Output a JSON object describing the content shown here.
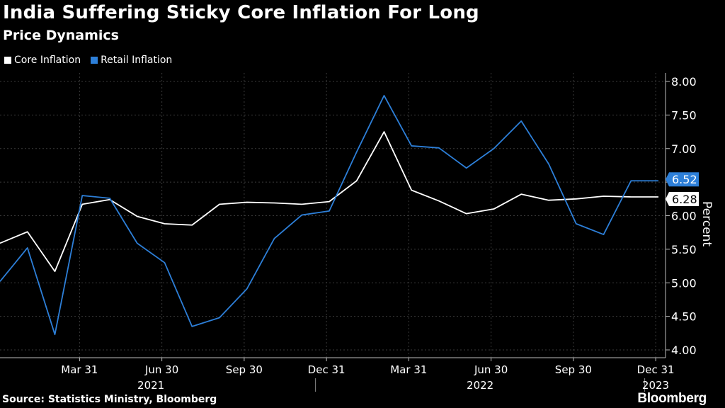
{
  "chart_data": {
    "type": "line",
    "title": "India Suffering Sticky Core Inflation For Long",
    "subtitle": "Price Dynamics",
    "ylabel": "Percent",
    "source": "Source: Statistics Ministry, Bloomberg",
    "brand": "Bloomberg",
    "ylim": [
      4.0,
      8.0
    ],
    "yticks": [
      "4.00",
      "4.50",
      "5.00",
      "5.50",
      "6.00",
      "6.50",
      "7.00",
      "7.50",
      "8.00"
    ],
    "y_axis_side": "right",
    "grid": true,
    "legend_position": "top-left",
    "x": [
      "2021-01",
      "2021-02",
      "2021-03",
      "2021-04",
      "2021-05",
      "2021-06",
      "2021-07",
      "2021-08",
      "2021-09",
      "2021-10",
      "2021-11",
      "2021-12",
      "2022-01",
      "2022-02",
      "2022-03",
      "2022-04",
      "2022-05",
      "2022-06",
      "2022-07",
      "2022-08",
      "2022-09",
      "2022-10",
      "2022-11",
      "2022-12",
      "2023-01"
    ],
    "xtick_labels": [
      "Mar 31",
      "Jun 30",
      "Sep 30",
      "Dec 31",
      "Mar 31",
      "Jun 30",
      "Sep 30",
      "Dec 31"
    ],
    "xtick_dates": [
      "2021-03",
      "2021-06",
      "2021-09",
      "2021-12",
      "2022-03",
      "2022-06",
      "2022-09",
      "2022-12"
    ],
    "year_labels": [
      {
        "label": "2021",
        "from": "2021-01",
        "to": "2021-12"
      },
      {
        "label": "2022",
        "from": "2022-01",
        "to": "2022-12"
      },
      {
        "label": "2023",
        "from": "2023-01",
        "to": "2023-01"
      }
    ],
    "series": [
      {
        "name": "Core Inflation",
        "color": "#ffffff",
        "values": [
          5.59,
          5.76,
          5.17,
          6.17,
          6.24,
          5.99,
          5.88,
          5.86,
          6.17,
          6.2,
          6.19,
          6.17,
          6.21,
          6.52,
          7.25,
          6.38,
          6.22,
          6.03,
          6.1,
          6.32,
          6.23,
          6.25,
          6.29,
          6.28,
          6.28
        ],
        "last_label": "6.28"
      },
      {
        "name": "Retail Inflation",
        "color": "#2d7fd8",
        "values": [
          5.02,
          5.52,
          4.23,
          6.3,
          6.26,
          5.59,
          5.3,
          4.35,
          4.48,
          4.91,
          5.66,
          6.01,
          6.07,
          6.95,
          7.79,
          7.04,
          7.01,
          6.71,
          7.0,
          7.41,
          6.77,
          5.88,
          5.72,
          6.52,
          6.52
        ],
        "last_label": "6.52"
      }
    ]
  }
}
